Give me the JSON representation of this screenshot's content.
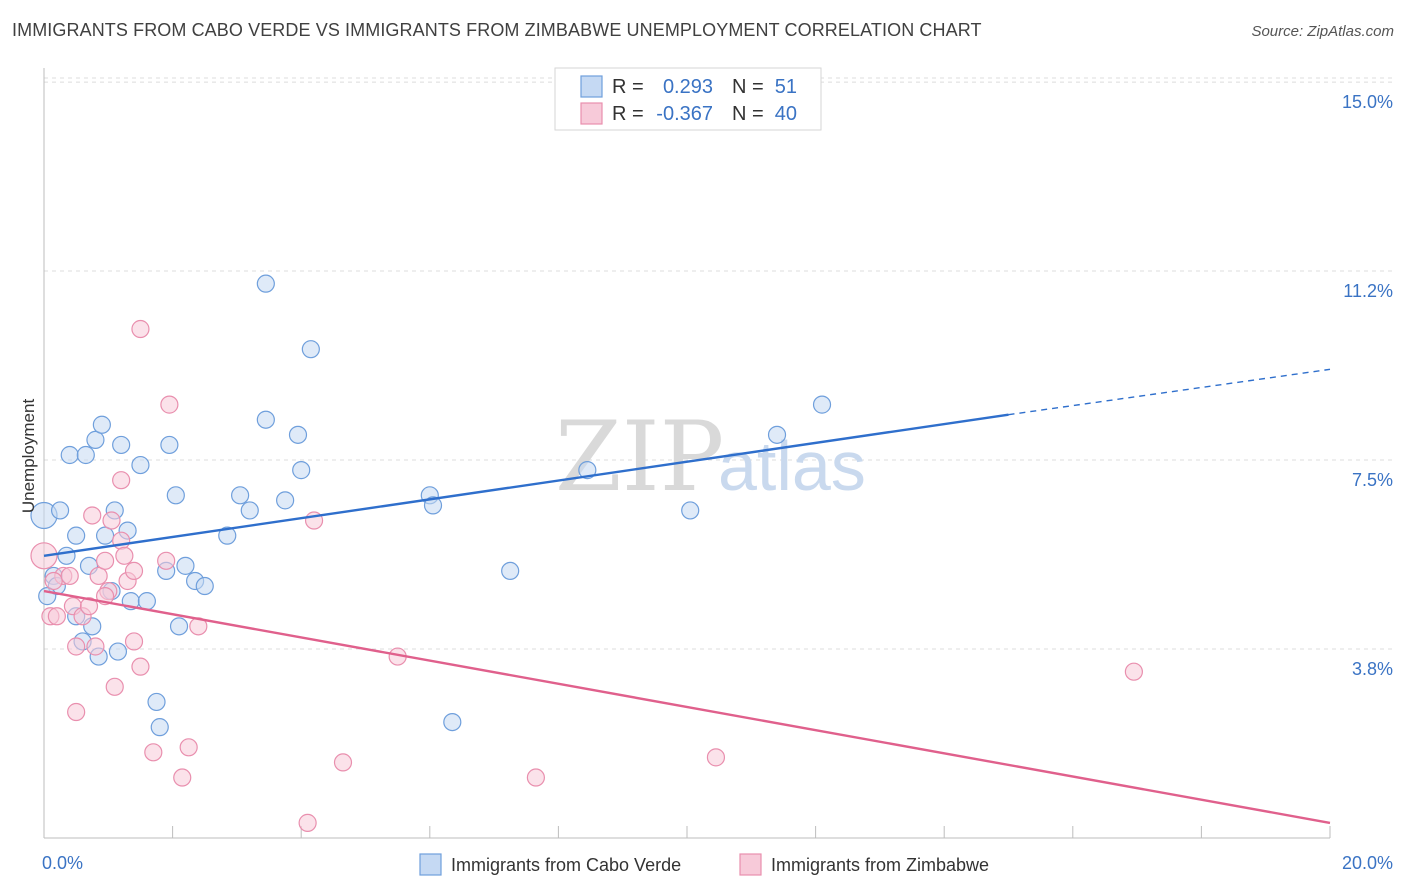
{
  "title": "IMMIGRANTS FROM CABO VERDE VS IMMIGRANTS FROM ZIMBABWE UNEMPLOYMENT CORRELATION CHART",
  "source": "Source: ZipAtlas.com",
  "watermark": {
    "zip": "ZIP",
    "atlas": "atlas"
  },
  "legend": {
    "r_label": "R =",
    "n_label": "N =",
    "rows": [
      {
        "series": "Immigrants from Cabo Verde",
        "r": "0.293",
        "n": "51"
      },
      {
        "series": "Immigrants from Zimbabwe",
        "r": "-0.367",
        "n": "40"
      }
    ]
  },
  "chart_data": {
    "type": "scatter",
    "title": "IMMIGRANTS FROM CABO VERDE VS IMMIGRANTS FROM ZIMBABWE UNEMPLOYMENT CORRELATION CHART",
    "xlabel": "",
    "ylabel": "Unemployment",
    "xlim": [
      0,
      20
    ],
    "ylim": [
      0,
      15.2
    ],
    "x_tick_labels": [
      {
        "value": 0,
        "label": "0.0%"
      },
      {
        "value": 20,
        "label": "20.0%"
      }
    ],
    "y_tick_labels": [
      {
        "value": 3.75,
        "label": "3.8%"
      },
      {
        "value": 7.5,
        "label": "7.5%"
      },
      {
        "value": 11.25,
        "label": "11.2%"
      },
      {
        "value": 15.0,
        "label": "15.0%"
      }
    ],
    "grid": true,
    "legend_position": "top-center",
    "series": [
      {
        "name": "Immigrants from Cabo Verde",
        "color": "#6f9fdc",
        "fill": "#c5d9f3",
        "points": [
          [
            0.0,
            6.4
          ],
          [
            0.15,
            5.2
          ],
          [
            0.2,
            5.0
          ],
          [
            0.25,
            6.5
          ],
          [
            0.35,
            5.6
          ],
          [
            0.4,
            7.6
          ],
          [
            0.5,
            4.4
          ],
          [
            0.5,
            6.0
          ],
          [
            0.6,
            3.9
          ],
          [
            0.65,
            7.6
          ],
          [
            0.7,
            5.4
          ],
          [
            0.75,
            4.2
          ],
          [
            0.8,
            7.9
          ],
          [
            0.85,
            3.6
          ],
          [
            0.9,
            8.2
          ],
          [
            0.95,
            6.0
          ],
          [
            1.05,
            4.9
          ],
          [
            1.1,
            6.5
          ],
          [
            1.15,
            3.7
          ],
          [
            1.2,
            7.8
          ],
          [
            1.3,
            6.1
          ],
          [
            1.35,
            4.7
          ],
          [
            1.5,
            7.4
          ],
          [
            1.6,
            4.7
          ],
          [
            1.75,
            2.7
          ],
          [
            1.8,
            2.2
          ],
          [
            1.9,
            5.3
          ],
          [
            1.95,
            7.8
          ],
          [
            2.05,
            6.8
          ],
          [
            2.1,
            4.2
          ],
          [
            2.2,
            5.4
          ],
          [
            2.35,
            5.1
          ],
          [
            2.5,
            5.0
          ],
          [
            2.85,
            6.0
          ],
          [
            3.05,
            6.8
          ],
          [
            3.2,
            6.5
          ],
          [
            3.45,
            11.0
          ],
          [
            3.45,
            8.3
          ],
          [
            3.75,
            6.7
          ],
          [
            3.95,
            8.0
          ],
          [
            4.0,
            7.3
          ],
          [
            4.15,
            9.7
          ],
          [
            6.0,
            6.8
          ],
          [
            6.05,
            6.6
          ],
          [
            6.35,
            2.3
          ],
          [
            7.25,
            5.3
          ],
          [
            8.45,
            7.3
          ],
          [
            10.05,
            6.5
          ],
          [
            11.4,
            8.0
          ],
          [
            12.1,
            8.6
          ],
          [
            0.05,
            4.8
          ]
        ],
        "trend": {
          "x": [
            0,
            15
          ],
          "y": [
            5.6,
            8.4
          ]
        },
        "trend_dashed_extension": {
          "x": [
            15,
            20
          ],
          "y": [
            8.4,
            9.3
          ]
        }
      },
      {
        "name": "Immigrants from Zimbabwe",
        "color": "#e98fae",
        "fill": "#f7cad9",
        "points": [
          [
            0.0,
            5.6
          ],
          [
            0.1,
            4.4
          ],
          [
            0.2,
            4.4
          ],
          [
            0.3,
            5.2
          ],
          [
            0.4,
            5.2
          ],
          [
            0.45,
            4.6
          ],
          [
            0.5,
            2.5
          ],
          [
            0.5,
            3.8
          ],
          [
            0.6,
            4.4
          ],
          [
            0.7,
            4.6
          ],
          [
            0.75,
            6.4
          ],
          [
            0.8,
            3.8
          ],
          [
            0.85,
            5.2
          ],
          [
            0.95,
            5.5
          ],
          [
            1.0,
            4.9
          ],
          [
            1.05,
            6.3
          ],
          [
            1.1,
            3.0
          ],
          [
            1.2,
            7.1
          ],
          [
            1.2,
            5.9
          ],
          [
            1.25,
            5.6
          ],
          [
            1.3,
            5.1
          ],
          [
            1.4,
            5.3
          ],
          [
            1.4,
            3.9
          ],
          [
            1.5,
            3.4
          ],
          [
            1.5,
            10.1
          ],
          [
            1.7,
            1.7
          ],
          [
            1.9,
            5.5
          ],
          [
            1.95,
            8.6
          ],
          [
            2.15,
            1.2
          ],
          [
            2.25,
            1.8
          ],
          [
            2.4,
            4.2
          ],
          [
            4.1,
            0.3
          ],
          [
            4.2,
            6.3
          ],
          [
            4.65,
            1.5
          ],
          [
            5.5,
            3.6
          ],
          [
            7.65,
            1.2
          ],
          [
            10.45,
            1.6
          ],
          [
            16.95,
            3.3
          ],
          [
            0.15,
            5.1
          ],
          [
            0.95,
            4.8
          ]
        ],
        "trend": {
          "x": [
            0,
            20
          ],
          "y": [
            4.9,
            0.3
          ]
        }
      }
    ]
  }
}
